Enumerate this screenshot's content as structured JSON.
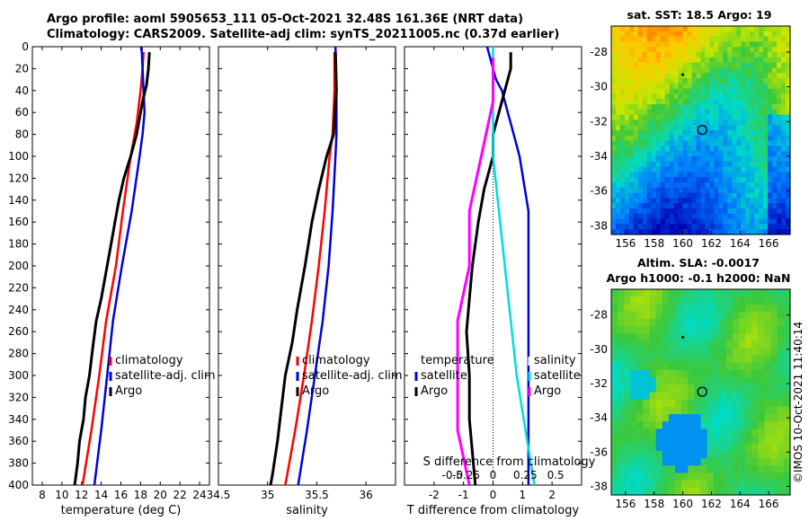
{
  "header": {
    "title_line1": "Argo profile: aoml 5905653_111 05-Oct-2021 32.48S 161.36E (NRT data)",
    "title_line2": "Climatology: CARS2009. Satellite-adj clim: synTS_20211005.nc (0.37d earlier)"
  },
  "colors": {
    "climatology": "#ff0000",
    "satellite": "#0000dd",
    "argo": "#000000",
    "salinity_diff": "#ff00ff",
    "satellite_diff": "#00dddd"
  },
  "chart_data": [
    {
      "type": "line",
      "name": "temperature",
      "xlabel": "temperature (deg C)",
      "xlim": [
        7,
        25
      ],
      "xticks": [
        8,
        10,
        12,
        14,
        16,
        18,
        20,
        22,
        24
      ],
      "ylim": [
        400,
        0
      ],
      "yticks": [
        0,
        20,
        40,
        60,
        80,
        100,
        120,
        140,
        160,
        180,
        200,
        220,
        240,
        260,
        280,
        300,
        320,
        340,
        360,
        380,
        400
      ],
      "legend": [
        "climatology",
        "satellite-adj. clim",
        "Argo"
      ],
      "series": [
        {
          "name": "climatology",
          "points": [
            [
              18.3,
              5
            ],
            [
              18.2,
              20
            ],
            [
              18.0,
              40
            ],
            [
              17.6,
              70
            ],
            [
              17.0,
              100
            ],
            [
              16.2,
              150
            ],
            [
              15.5,
              200
            ],
            [
              14.5,
              250
            ],
            [
              13.8,
              300
            ],
            [
              13.0,
              350
            ],
            [
              12.1,
              400
            ]
          ]
        },
        {
          "name": "satellite-adj. clim",
          "points": [
            [
              18.1,
              0
            ],
            [
              18.2,
              20
            ],
            [
              18.3,
              40
            ],
            [
              18.4,
              60
            ],
            [
              18.2,
              80
            ],
            [
              17.9,
              100
            ],
            [
              17.1,
              150
            ],
            [
              16.1,
              200
            ],
            [
              15.2,
              250
            ],
            [
              14.6,
              300
            ],
            [
              14.0,
              350
            ],
            [
              13.3,
              400
            ]
          ]
        },
        {
          "name": "Argo",
          "points": [
            [
              18.9,
              5
            ],
            [
              18.8,
              20
            ],
            [
              18.6,
              35
            ],
            [
              18.2,
              50
            ],
            [
              17.6,
              80
            ],
            [
              17.0,
              100
            ],
            [
              16.3,
              120
            ],
            [
              15.8,
              140
            ],
            [
              15.4,
              160
            ],
            [
              15.0,
              180
            ],
            [
              14.6,
              200
            ],
            [
              14.0,
              230
            ],
            [
              13.5,
              250
            ],
            [
              13.2,
              270
            ],
            [
              12.8,
              300
            ],
            [
              12.4,
              320
            ],
            [
              12.2,
              340
            ],
            [
              11.8,
              360
            ],
            [
              11.6,
              380
            ],
            [
              11.3,
              400
            ]
          ]
        }
      ]
    },
    {
      "type": "line",
      "name": "salinity",
      "xlabel": "salinity",
      "xlim": [
        34.5,
        36.3
      ],
      "xticks": [
        34.5,
        35,
        35.5,
        36
      ],
      "ylim": [
        400,
        0
      ],
      "legend": [
        "climatology",
        "satellite-adj. clim",
        "Argo"
      ],
      "series": [
        {
          "name": "climatology",
          "points": [
            [
              35.68,
              5
            ],
            [
              35.68,
              40
            ],
            [
              35.66,
              80
            ],
            [
              35.63,
              100
            ],
            [
              35.58,
              150
            ],
            [
              35.52,
              200
            ],
            [
              35.45,
              250
            ],
            [
              35.37,
              300
            ],
            [
              35.28,
              350
            ],
            [
              35.18,
              400
            ]
          ]
        },
        {
          "name": "satellite-adj. clim",
          "points": [
            [
              35.69,
              0
            ],
            [
              35.7,
              40
            ],
            [
              35.7,
              80
            ],
            [
              35.69,
              100
            ],
            [
              35.66,
              150
            ],
            [
              35.62,
              200
            ],
            [
              35.56,
              250
            ],
            [
              35.48,
              300
            ],
            [
              35.4,
              350
            ],
            [
              35.31,
              400
            ]
          ]
        },
        {
          "name": "Argo",
          "points": [
            [
              35.69,
              5
            ],
            [
              35.7,
              40
            ],
            [
              35.67,
              80
            ],
            [
              35.6,
              100
            ],
            [
              35.52,
              130
            ],
            [
              35.45,
              160
            ],
            [
              35.38,
              200
            ],
            [
              35.3,
              240
            ],
            [
              35.25,
              270
            ],
            [
              35.18,
              300
            ],
            [
              35.14,
              330
            ],
            [
              35.1,
              360
            ],
            [
              35.05,
              390
            ],
            [
              35.03,
              400
            ]
          ]
        }
      ]
    },
    {
      "type": "line",
      "name": "difference",
      "xlabel": "T difference from climatology",
      "xlabel2": "S difference from climatology",
      "xlim": [
        -3,
        3
      ],
      "xticks": [
        -2,
        -1,
        0,
        1,
        2
      ],
      "xticklabels2": [
        "-0.5",
        "-0.25",
        "0",
        "0.25",
        "0.5"
      ],
      "ylim": [
        400,
        0
      ],
      "legend_left": [
        "temperature",
        "satellite",
        "Argo"
      ],
      "legend_right": [
        "salinity",
        "satellite",
        "Argo"
      ],
      "series": [
        {
          "name": "T satellite",
          "points": [
            [
              -0.2,
              0
            ],
            [
              0.0,
              20
            ],
            [
              0.1,
              30
            ],
            [
              0.3,
              40
            ],
            [
              0.5,
              60
            ],
            [
              0.7,
              80
            ],
            [
              0.9,
              100
            ],
            [
              1.2,
              150
            ],
            [
              1.2,
              200
            ],
            [
              1.2,
              300
            ],
            [
              1.2,
              400
            ]
          ]
        },
        {
          "name": "T Argo",
          "points": [
            [
              0.6,
              5
            ],
            [
              0.6,
              20
            ],
            [
              0.4,
              40
            ],
            [
              0.0,
              80
            ],
            [
              0.0,
              100
            ],
            [
              -0.3,
              130
            ],
            [
              -0.5,
              160
            ],
            [
              -0.7,
              200
            ],
            [
              -0.8,
              230
            ],
            [
              -0.9,
              260
            ],
            [
              -0.8,
              300
            ],
            [
              -0.8,
              340
            ],
            [
              -0.7,
              370
            ],
            [
              -0.6,
              400
            ]
          ]
        },
        {
          "name": "S satellite",
          "points": [
            [
              0.0,
              0
            ],
            [
              0.0,
              100
            ],
            [
              0.1,
              200
            ],
            [
              0.2,
              300
            ],
            [
              0.35,
              400
            ]
          ]
        },
        {
          "name": "S Argo",
          "points": [
            [
              0.0,
              10
            ],
            [
              0.0,
              50
            ],
            [
              -0.1,
              100
            ],
            [
              -0.2,
              150
            ],
            [
              -0.2,
              200
            ],
            [
              -0.3,
              250
            ],
            [
              -0.3,
              300
            ],
            [
              -0.3,
              350
            ],
            [
              -0.2,
              400
            ]
          ]
        }
      ]
    },
    {
      "type": "heatmap",
      "name": "sst_map",
      "title": "sat. SST: 18.5 Argo: 19",
      "xticks": [
        156,
        158,
        160,
        162,
        164,
        166
      ],
      "yticks": [
        -28,
        -30,
        -32,
        -34,
        -36,
        -38
      ],
      "xlim": [
        155,
        167.5
      ],
      "ylim": [
        -38.5,
        -26.5
      ],
      "float_location": [
        161.36,
        -32.48
      ]
    },
    {
      "type": "heatmap",
      "name": "sla_map",
      "title": "Altim. SLA: -0.0017",
      "subtitle": "Argo h1000: -0.1 h2000: NaN",
      "xticks": [
        156,
        158,
        160,
        162,
        164,
        166
      ],
      "yticks": [
        -28,
        -30,
        -32,
        -34,
        -36,
        -38
      ],
      "xlim": [
        155,
        167.5
      ],
      "ylim": [
        -38.5,
        -26.5
      ],
      "float_location": [
        161.36,
        -32.48
      ]
    }
  ],
  "stamp": "©IMOS 10-Oct-2021 11:40:14"
}
